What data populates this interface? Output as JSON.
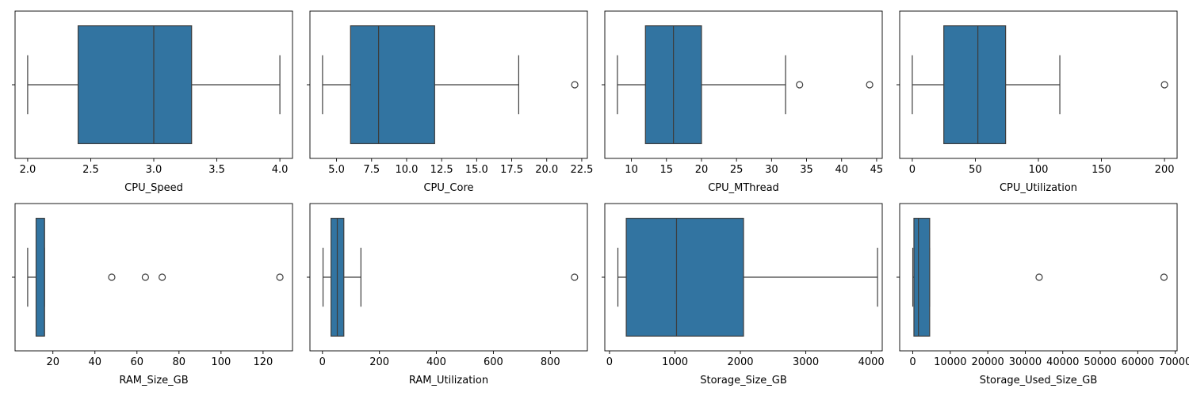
{
  "figure": {
    "layout": "2x4 grid of horizontal box plots",
    "box_color": "#3274a1",
    "line_color": "#3d3d3d"
  },
  "chart_data": [
    {
      "type": "boxplot",
      "xlabel": "CPU_Speed",
      "xlim": [
        1.9,
        4.1
      ],
      "ticks": [
        2.0,
        2.5,
        3.0,
        3.5,
        4.0
      ],
      "tick_labels": [
        "2.0",
        "2.5",
        "3.0",
        "3.5",
        "4.0"
      ],
      "whisker_low": 2.0,
      "q1": 2.4,
      "median": 3.0,
      "q3": 3.3,
      "whisker_high": 4.0,
      "outliers": []
    },
    {
      "type": "boxplot",
      "xlabel": "CPU_Core",
      "xlim": [
        3.1,
        22.9
      ],
      "ticks": [
        5.0,
        7.5,
        10.0,
        12.5,
        15.0,
        17.5,
        20.0,
        22.5
      ],
      "tick_labels": [
        "5.0",
        "7.5",
        "10.0",
        "12.5",
        "15.0",
        "17.5",
        "20.0",
        "22.5"
      ],
      "whisker_low": 4,
      "q1": 6,
      "median": 8,
      "q3": 12,
      "whisker_high": 18,
      "outliers": [
        22
      ]
    },
    {
      "type": "boxplot",
      "xlabel": "CPU_MThread",
      "xlim": [
        6.2,
        45.8
      ],
      "ticks": [
        10,
        15,
        20,
        25,
        30,
        35,
        40,
        45
      ],
      "tick_labels": [
        "10",
        "15",
        "20",
        "25",
        "30",
        "35",
        "40",
        "45"
      ],
      "whisker_low": 8,
      "q1": 12,
      "median": 16,
      "q3": 20,
      "whisker_high": 32,
      "outliers": [
        34,
        44
      ]
    },
    {
      "type": "boxplot",
      "xlabel": "CPU_Utilization",
      "xlim": [
        -10,
        210
      ],
      "ticks": [
        0,
        50,
        100,
        150,
        200
      ],
      "tick_labels": [
        "0",
        "50",
        "100",
        "150",
        "200"
      ],
      "whisker_low": 0,
      "q1": 25,
      "median": 52,
      "q3": 74,
      "whisker_high": 117,
      "outliers": [
        200
      ]
    },
    {
      "type": "boxplot",
      "xlabel": "RAM_Size_GB",
      "xlim": [
        2,
        134
      ],
      "ticks": [
        20,
        40,
        60,
        80,
        100,
        120
      ],
      "tick_labels": [
        "20",
        "40",
        "60",
        "80",
        "100",
        "120"
      ],
      "whisker_low": 8,
      "q1": 12,
      "median": 16,
      "q3": 16,
      "whisker_high": 16,
      "outliers": [
        48,
        64,
        72,
        128
      ]
    },
    {
      "type": "boxplot",
      "xlabel": "RAM_Utilization",
      "xlim": [
        -44,
        930
      ],
      "ticks": [
        0,
        200,
        400,
        600,
        800
      ],
      "tick_labels": [
        "0",
        "200",
        "400",
        "600",
        "800"
      ],
      "whisker_low": 2,
      "q1": 30,
      "median": 52,
      "q3": 75,
      "whisker_high": 135,
      "outliers": [
        885
      ]
    },
    {
      "type": "boxplot",
      "xlabel": "Storage_Size_GB",
      "xlim": [
        -72,
        4168
      ],
      "ticks": [
        0,
        1000,
        2000,
        3000,
        4000
      ],
      "tick_labels": [
        "0",
        "1000",
        "2000",
        "3000",
        "4000"
      ],
      "whisker_low": 128,
      "q1": 256,
      "median": 1024,
      "q3": 2048,
      "whisker_high": 4096,
      "outliers": []
    },
    {
      "type": "boxplot",
      "xlabel": "Storage_Used_Size_GB",
      "xlim": [
        -3500,
        70500
      ],
      "ticks": [
        0,
        10000,
        20000,
        30000,
        40000,
        50000,
        60000,
        70000
      ],
      "tick_labels": [
        "0",
        "10000",
        "20000",
        "30000",
        "40000",
        "50000",
        "60000",
        "70000"
      ],
      "whisker_low": 0,
      "q1": 300,
      "median": 1500,
      "q3": 4500,
      "whisker_high": 4500,
      "outliers": [
        33700,
        67000
      ]
    }
  ]
}
